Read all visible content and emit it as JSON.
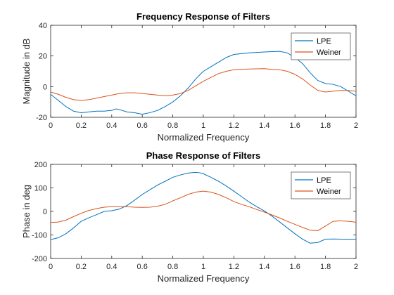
{
  "chart_data": [
    {
      "type": "line",
      "title": "Frequency Response of Filters",
      "xlabel": "Normalized Frequency",
      "ylabel": "Magnitude in dB",
      "xlim": [
        0,
        2
      ],
      "ylim": [
        -20,
        40
      ],
      "xticks": [
        "0",
        "0.2",
        "0.4",
        "0.6",
        "0.8",
        "1",
        "1.2",
        "1.4",
        "1.6",
        "1.8",
        "2"
      ],
      "yticks": [
        "-20",
        "0",
        "20",
        "40"
      ],
      "grid": false,
      "legend_position": "top-right",
      "series": [
        {
          "name": "LPE",
          "color": "#0072bd",
          "x": [
            0,
            0.05,
            0.1,
            0.15,
            0.2,
            0.25,
            0.3,
            0.35,
            0.4,
            0.43,
            0.45,
            0.5,
            0.55,
            0.6,
            0.65,
            0.7,
            0.75,
            0.8,
            0.85,
            0.9,
            0.95,
            1.0,
            1.05,
            1.1,
            1.15,
            1.2,
            1.25,
            1.3,
            1.35,
            1.4,
            1.45,
            1.5,
            1.55,
            1.6,
            1.65,
            1.7,
            1.75,
            1.8,
            1.85,
            1.9,
            1.95,
            2.0
          ],
          "y": [
            -5,
            -9,
            -13,
            -16,
            -17,
            -16.5,
            -16,
            -16,
            -15.5,
            -14.5,
            -15,
            -16.5,
            -17,
            -18,
            -17,
            -15.5,
            -13,
            -10,
            -6,
            -1,
            5,
            10,
            13,
            16,
            19,
            21,
            21.5,
            22,
            22.3,
            22.6,
            22.8,
            23,
            22,
            19,
            15,
            9,
            4,
            2,
            1.5,
            0,
            -3,
            -6
          ]
        },
        {
          "name": "Weiner",
          "color": "#d95319",
          "x": [
            0,
            0.05,
            0.1,
            0.15,
            0.2,
            0.25,
            0.3,
            0.35,
            0.4,
            0.45,
            0.5,
            0.55,
            0.6,
            0.65,
            0.7,
            0.75,
            0.8,
            0.85,
            0.9,
            0.95,
            1.0,
            1.05,
            1.1,
            1.15,
            1.2,
            1.25,
            1.3,
            1.35,
            1.4,
            1.45,
            1.5,
            1.55,
            1.6,
            1.65,
            1.7,
            1.75,
            1.8,
            1.85,
            1.9,
            1.95,
            2.0
          ],
          "y": [
            -3.5,
            -5,
            -7,
            -8.5,
            -9,
            -8.5,
            -7.5,
            -6.5,
            -5.5,
            -4.5,
            -4,
            -4,
            -4.5,
            -5,
            -5.5,
            -6,
            -5.5,
            -4.5,
            -2.5,
            0.5,
            3.5,
            6,
            8.5,
            10,
            11,
            11.3,
            11.5,
            11.6,
            11.7,
            11.2,
            11,
            10,
            8,
            5,
            1,
            -2.5,
            -3.5,
            -3,
            -2.5,
            -2.5,
            -3
          ]
        }
      ]
    },
    {
      "type": "line",
      "title": "Phase Response of  Filters",
      "xlabel": "Normalized Frequency",
      "ylabel": "Phase in deg",
      "xlim": [
        0,
        2
      ],
      "ylim": [
        -200,
        200
      ],
      "xticks": [
        "0",
        "0.2",
        "0.4",
        "0.6",
        "0.8",
        "1",
        "1.2",
        "1.4",
        "1.6",
        "1.8",
        "2"
      ],
      "yticks": [
        "-200",
        "-100",
        "0",
        "100",
        "200"
      ],
      "grid": false,
      "legend_position": "top-right",
      "series": [
        {
          "name": "LPE",
          "color": "#0072bd",
          "x": [
            0,
            0.05,
            0.1,
            0.15,
            0.2,
            0.25,
            0.3,
            0.35,
            0.4,
            0.45,
            0.5,
            0.55,
            0.6,
            0.65,
            0.7,
            0.75,
            0.8,
            0.85,
            0.9,
            0.95,
            0.98,
            1.0,
            1.05,
            1.1,
            1.15,
            1.2,
            1.25,
            1.3,
            1.35,
            1.4,
            1.45,
            1.5,
            1.55,
            1.6,
            1.65,
            1.7,
            1.75,
            1.8,
            1.85,
            1.9,
            1.95,
            2.0
          ],
          "y": [
            -120,
            -112,
            -95,
            -70,
            -42,
            -27,
            -14,
            0,
            3,
            10,
            25,
            48,
            72,
            92,
            112,
            128,
            145,
            155,
            163,
            166,
            164,
            160,
            145,
            128,
            108,
            86,
            63,
            40,
            20,
            2,
            -20,
            -45,
            -70,
            -95,
            -118,
            -135,
            -132,
            -118,
            -117,
            -118,
            -118,
            -118
          ]
        },
        {
          "name": "Weiner",
          "color": "#d95319",
          "x": [
            0,
            0.05,
            0.1,
            0.15,
            0.2,
            0.25,
            0.3,
            0.35,
            0.4,
            0.45,
            0.5,
            0.55,
            0.6,
            0.65,
            0.7,
            0.75,
            0.8,
            0.85,
            0.9,
            0.95,
            1.0,
            1.05,
            1.1,
            1.15,
            1.2,
            1.25,
            1.3,
            1.35,
            1.4,
            1.45,
            1.5,
            1.55,
            1.6,
            1.65,
            1.7,
            1.75,
            1.8,
            1.85,
            1.9,
            1.95,
            2.0
          ],
          "y": [
            -47,
            -45,
            -37,
            -22,
            -8,
            4,
            12,
            18,
            20,
            20,
            20,
            18,
            17,
            18,
            22,
            30,
            45,
            58,
            72,
            82,
            86,
            82,
            72,
            58,
            42,
            30,
            20,
            8,
            -3,
            -15,
            -28,
            -42,
            -55,
            -68,
            -80,
            -82,
            -62,
            -42,
            -40,
            -42,
            -46
          ]
        }
      ]
    }
  ]
}
